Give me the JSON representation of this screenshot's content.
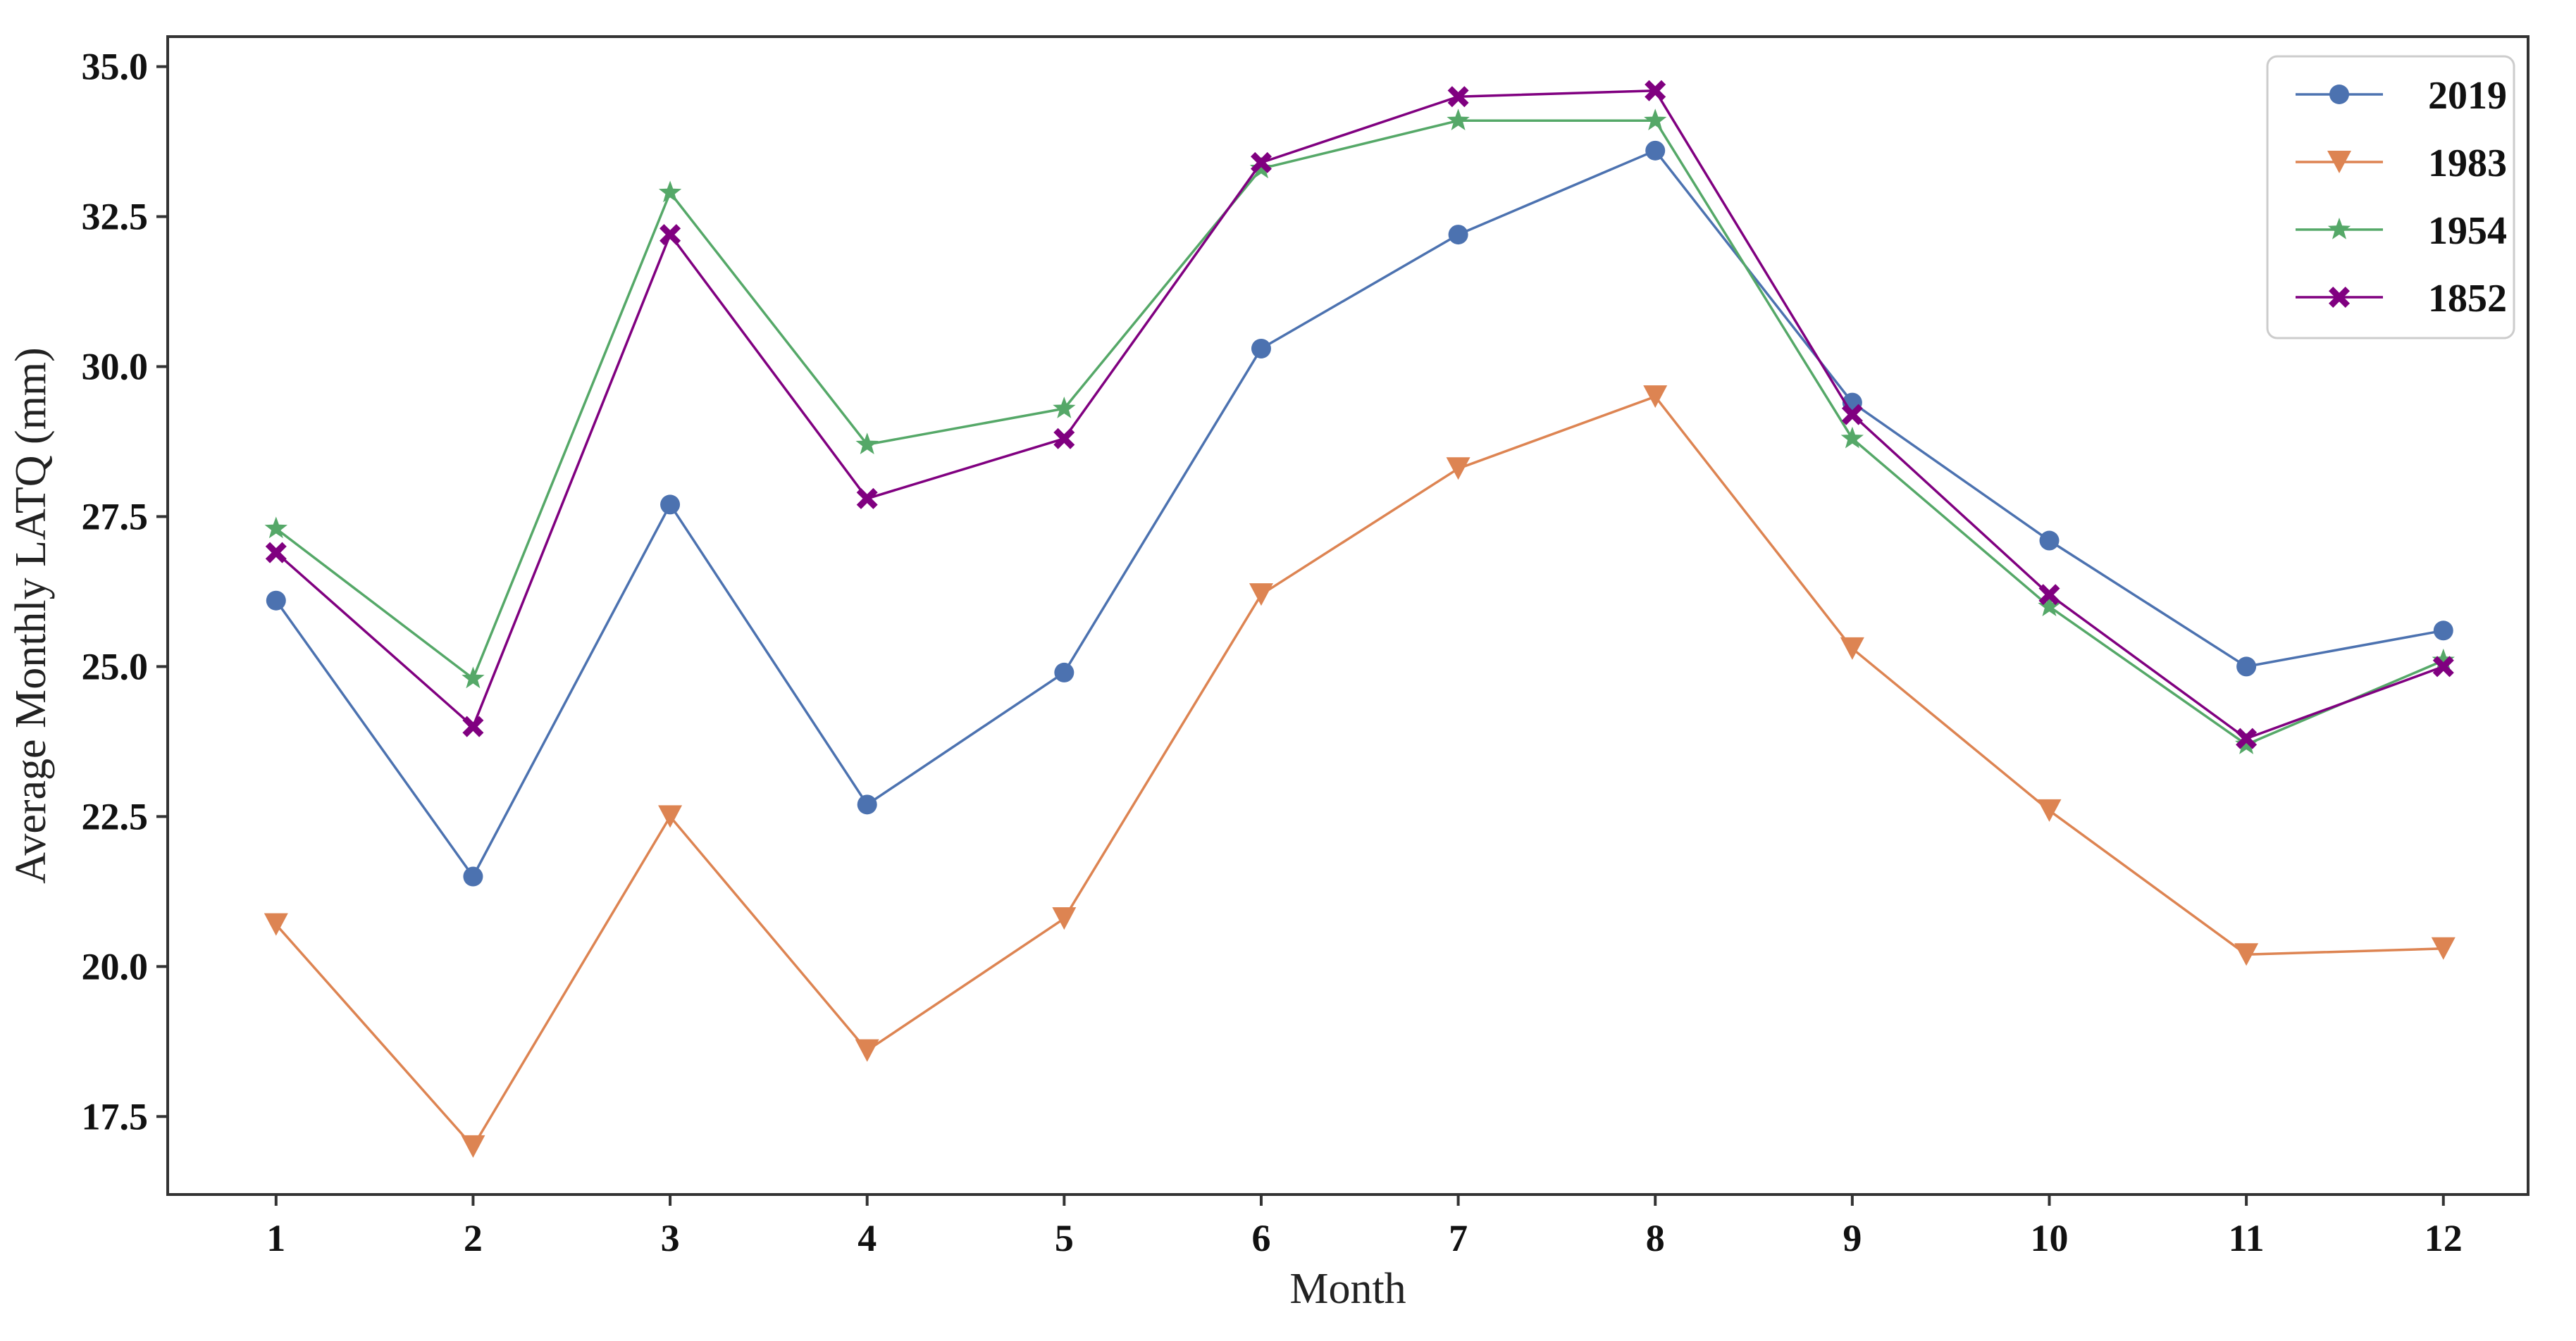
{
  "chart_data": {
    "type": "line",
    "title": "",
    "xlabel": "Month",
    "ylabel": "Average Monthly LATQ (mm)",
    "x": [
      1,
      2,
      3,
      4,
      5,
      6,
      7,
      8,
      9,
      10,
      11,
      12
    ],
    "x_tick_labels": [
      "1",
      "2",
      "3",
      "4",
      "5",
      "6",
      "7",
      "8",
      "9",
      "10",
      "11",
      "12"
    ],
    "xlim": [
      0.45,
      12.43
    ],
    "ylim": [
      16.2,
      35.5
    ],
    "y_ticks": [
      17.5,
      20.0,
      22.5,
      25.0,
      27.5,
      30.0,
      32.5,
      35.0
    ],
    "y_tick_labels": [
      "17.5",
      "20.0",
      "22.5",
      "25.0",
      "27.5",
      "30.0",
      "32.5",
      "35.0"
    ],
    "grid": false,
    "legend_position": "top-right",
    "series": [
      {
        "name": "2019",
        "color": "#4c72b0",
        "marker": "circle",
        "values": [
          26.1,
          21.5,
          27.7,
          22.7,
          24.9,
          30.3,
          32.2,
          33.6,
          29.4,
          27.1,
          25.0,
          25.6
        ]
      },
      {
        "name": "1983",
        "color": "#dd8452",
        "marker": "triangle-down",
        "values": [
          20.7,
          17.0,
          22.5,
          18.6,
          20.8,
          26.2,
          28.3,
          29.5,
          25.3,
          22.6,
          20.2,
          20.3
        ]
      },
      {
        "name": "1954",
        "color": "#55a868",
        "marker": "star",
        "values": [
          27.3,
          24.8,
          32.9,
          28.7,
          29.3,
          33.3,
          34.1,
          34.1,
          28.8,
          26.0,
          23.7,
          25.1
        ]
      },
      {
        "name": "1852",
        "color": "#800080",
        "marker": "x-filled",
        "values": [
          26.9,
          24.0,
          32.2,
          27.8,
          28.8,
          33.4,
          34.5,
          34.6,
          29.2,
          26.2,
          23.8,
          25.0
        ]
      }
    ]
  }
}
